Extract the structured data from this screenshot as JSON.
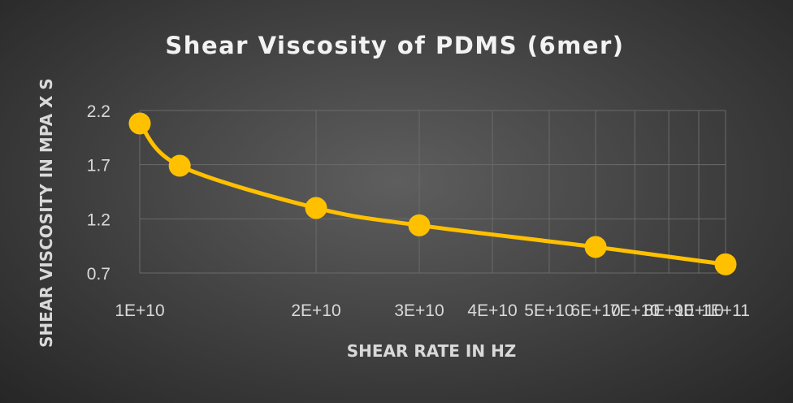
{
  "chart_data": {
    "type": "scatter",
    "title": "Shear Viscosity of PDMS (6mer)",
    "xlabel": "SHEAR RATE IN HZ",
    "ylabel": "SHEAR VISCOSITY IN MPA X S",
    "x_scale": "log",
    "x_tick_labels": [
      "1E+10",
      "2E+10",
      "3E+10",
      "4E+10",
      "5E+10",
      "6E+10",
      "7E+10",
      "8E+10",
      "9E+10",
      "1E+11"
    ],
    "x_tick_values": [
      10000000000.0,
      20000000000.0,
      30000000000.0,
      40000000000.0,
      50000000000.0,
      60000000000.0,
      70000000000.0,
      80000000000.0,
      90000000000.0,
      100000000000.0
    ],
    "xlim": [
      10000000000.0,
      100000000000.0
    ],
    "y_ticks": [
      0.7,
      1.2,
      1.7,
      2.2
    ],
    "ylim": [
      0.7,
      2.2
    ],
    "grid": true,
    "legend": "none",
    "line_style": "smooth",
    "series_color": "#ffc000",
    "series": [
      {
        "points": [
          {
            "x": 10000000000.0,
            "y": 2.08
          },
          {
            "x": 11700000000.0,
            "y": 1.69
          },
          {
            "x": 20000000000.0,
            "y": 1.3
          },
          {
            "x": 30000000000.0,
            "y": 1.14
          },
          {
            "x": 60000000000.0,
            "y": 0.94
          },
          {
            "x": 100000000000.0,
            "y": 0.78
          }
        ]
      }
    ]
  }
}
